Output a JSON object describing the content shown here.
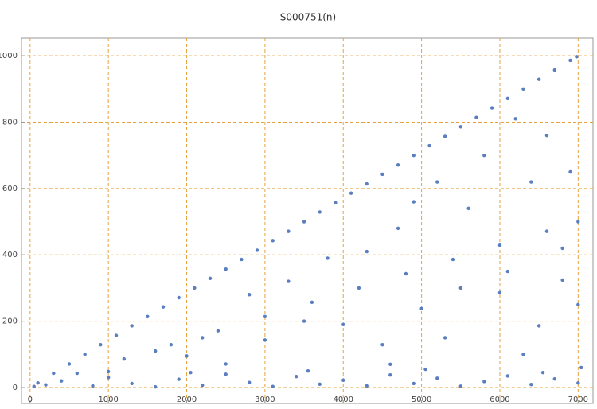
{
  "chart_data": {
    "type": "scatter",
    "title": "S000751(n)",
    "color": "#5a7ec0",
    "grid": true,
    "grid_color": "#e8a23c",
    "xlim": [
      -110,
      7190
    ],
    "ylim": [
      -48,
      1053
    ],
    "xticks": [
      0,
      1000,
      2000,
      3000,
      4000,
      5000,
      6000,
      7000
    ],
    "yticks": [
      0,
      200,
      400,
      600,
      800,
      1000
    ],
    "x": [
      100,
      300,
      500,
      700,
      900,
      1100,
      1300,
      1500,
      1700,
      1900,
      2100,
      2300,
      2500,
      2700,
      2900,
      3100,
      3300,
      3500,
      3700,
      3900,
      4100,
      4300,
      4500,
      4700,
      4900,
      5100,
      5300,
      5500,
      5700,
      5900,
      6100,
      6300,
      6500,
      6700,
      6900,
      6980,
      600,
      1200,
      1800,
      2400,
      3000,
      3600,
      4200,
      4800,
      5400,
      6000,
      6600,
      7000,
      1000,
      2000,
      3000,
      4000,
      5000,
      6000,
      6800,
      2500,
      4500,
      6500,
      4300,
      5200,
      5800,
      6200,
      6600,
      6900,
      5600,
      4700,
      3800,
      3300,
      2800,
      6400,
      4900,
      5500,
      6100,
      3500,
      2200,
      1600,
      6800,
      7000,
      4600,
      5300,
      6300,
      50,
      200,
      400,
      800,
      1000,
      1300,
      1600,
      1900,
      2200,
      2500,
      2800,
      3100,
      3400,
      3700,
      4000,
      4300,
      4600,
      4900,
      5200,
      5500,
      5800,
      6100,
      6400,
      6700,
      7000,
      7040,
      6550,
      5050,
      3550,
      2050
    ],
    "values": [
      14,
      43,
      71,
      100,
      129,
      157,
      186,
      214,
      243,
      271,
      300,
      329,
      357,
      386,
      414,
      443,
      471,
      500,
      529,
      557,
      586,
      614,
      643,
      671,
      700,
      729,
      757,
      786,
      814,
      843,
      871,
      900,
      929,
      957,
      986,
      997,
      43,
      86,
      129,
      171,
      214,
      257,
      300,
      343,
      386,
      429,
      471,
      500,
      48,
      95,
      143,
      190,
      238,
      286,
      324,
      71,
      129,
      186,
      410,
      620,
      700,
      810,
      760,
      650,
      540,
      480,
      390,
      320,
      280,
      620,
      560,
      300,
      350,
      200,
      150,
      110,
      420,
      250,
      70,
      150,
      100,
      3,
      8,
      20,
      5,
      30,
      12,
      2,
      25,
      7,
      40,
      15,
      3,
      33,
      10,
      22,
      5,
      38,
      12,
      28,
      4,
      18,
      35,
      9,
      26,
      14,
      60,
      45,
      55,
      50,
      45
    ]
  }
}
